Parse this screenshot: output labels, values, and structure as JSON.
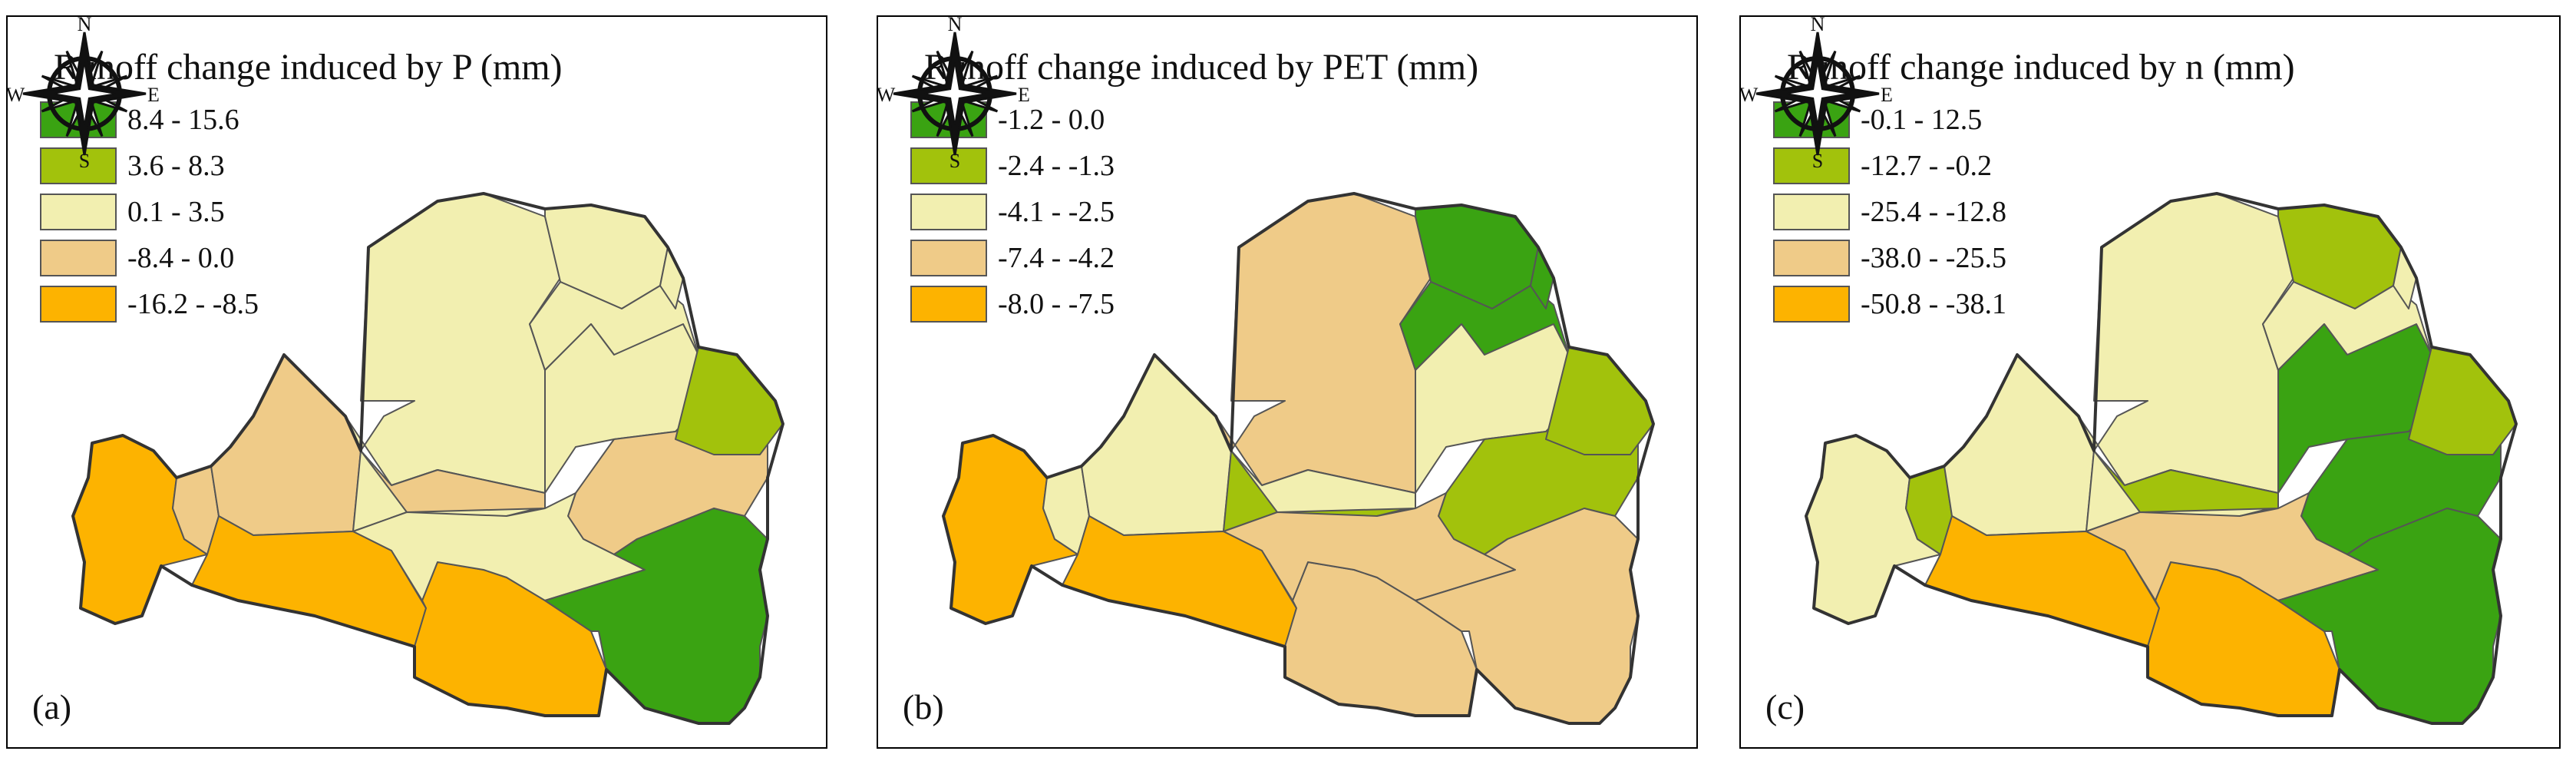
{
  "colors": {
    "dark_green": "#3aa312",
    "light_green": "#a2c20c",
    "pale_yellow": "#f2efb0",
    "tan": "#efcb88",
    "orange": "#fdb300",
    "border": "#555555"
  },
  "compass": {
    "n": "N",
    "s": "S",
    "e": "E",
    "w": "W",
    "icon": "compass-rose-icon"
  },
  "panels": [
    {
      "label": "(a)",
      "title": "Runoff change induced by P (mm)",
      "legend": [
        "8.4 - 15.6",
        "3.6 - 8.3",
        "0.1 - 3.5",
        "-8.4 - 0.0",
        "-16.2 - -8.5"
      ],
      "zone_classes": [
        4,
        3,
        3,
        4,
        4,
        2,
        2,
        3,
        2,
        2,
        2,
        2,
        3,
        1,
        2,
        0
      ]
    },
    {
      "label": "(b)",
      "title": "Runoff change induced by PET (mm)",
      "legend": [
        "-1.2 - 0.0",
        "-2.4 - -1.3",
        "-4.1 - -2.5",
        "-7.4 - -4.2",
        "-8.0 - -7.5"
      ],
      "zone_classes": [
        4,
        2,
        2,
        4,
        3,
        3,
        1,
        2,
        0,
        0,
        0,
        2,
        1,
        1,
        3,
        3
      ]
    },
    {
      "label": "(c)",
      "title": "Runoff change induced by n (mm)",
      "legend": [
        "-0.1 - 12.5",
        "-12.7 - -0.2",
        "-25.4 - -12.8",
        "-38.0 - -25.5",
        "-50.8 - -38.1"
      ],
      "zone_classes": [
        2,
        1,
        2,
        4,
        4,
        2,
        2,
        1,
        1,
        2,
        2,
        0,
        0,
        1,
        3,
        0
      ]
    }
  ]
}
